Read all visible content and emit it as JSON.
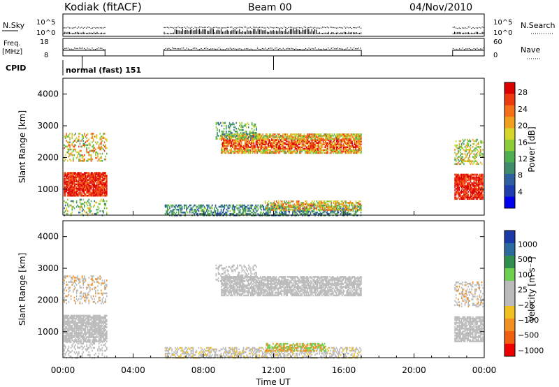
{
  "header": {
    "station": "Kodiak (fitACF)",
    "beam": "Beam 00",
    "date": "04/Nov/2010"
  },
  "panels": {
    "nsky": {
      "label": "N.Sky",
      "right_label": "N.Search",
      "ticks": [
        "10^5",
        "10^0"
      ]
    },
    "freq": {
      "label_line1": "Freq.",
      "label_line2": "[MHz]",
      "right_label": "Nave",
      "left_ticks": [
        "18",
        "8"
      ],
      "right_ticks": [
        "60",
        "0"
      ]
    },
    "cpid": {
      "label": "CPID",
      "value": "normal (fast) 151"
    }
  },
  "colors": {
    "power_scale": [
      "#0000ee",
      "#1f3fae",
      "#2e5fa0",
      "#3e8c6c",
      "#4fae4f",
      "#8ccc3a",
      "#d6d62a",
      "#f0a01e",
      "#f57018",
      "#ee3a10",
      "#dd0000"
    ],
    "velocity_scale": [
      "#ee0000",
      "#f06010",
      "#f09020",
      "#f0c020",
      "#bbbbbb",
      "#bbbbbb",
      "#6ed050",
      "#2f8f4f",
      "#2a6aa0",
      "#1a3aa8"
    ]
  },
  "chart_data": [
    {
      "type": "heatmap",
      "name": "power",
      "ylabel": "Slant Range [km]",
      "ylim": [
        180,
        4500
      ],
      "yticks": [
        "1000",
        "2000",
        "3000",
        "4000"
      ],
      "ytick_values": [
        1000,
        2000,
        3000,
        4000
      ],
      "colorbar_label": "Power [dB]",
      "colorbar_ticks": [
        "4",
        "8",
        "12",
        "16",
        "20",
        "24",
        "28"
      ],
      "colorbar_range": [
        0,
        30
      ]
    },
    {
      "type": "heatmap",
      "name": "velocity",
      "ylabel": "Slant Range [km]",
      "ylim": [
        180,
        4500
      ],
      "yticks": [
        "1000",
        "2000",
        "3000",
        "4000"
      ],
      "ytick_values": [
        1000,
        2000,
        3000,
        4000
      ],
      "colorbar_label": "Velocity [m s⁻¹]",
      "colorbar_ticks": [
        "1000",
        "500",
        "100",
        "25",
        "−25",
        "−100",
        "−500",
        "−1000"
      ]
    }
  ],
  "time_axis": {
    "xlabel": "Time UT",
    "xlim_hours": [
      0,
      24
    ],
    "ticks": [
      "00:00",
      "04:00",
      "08:00",
      "12:00",
      "16:00",
      "20:00",
      "00:00"
    ],
    "tick_hours": [
      0,
      4,
      8,
      12,
      16,
      20,
      24
    ]
  }
}
